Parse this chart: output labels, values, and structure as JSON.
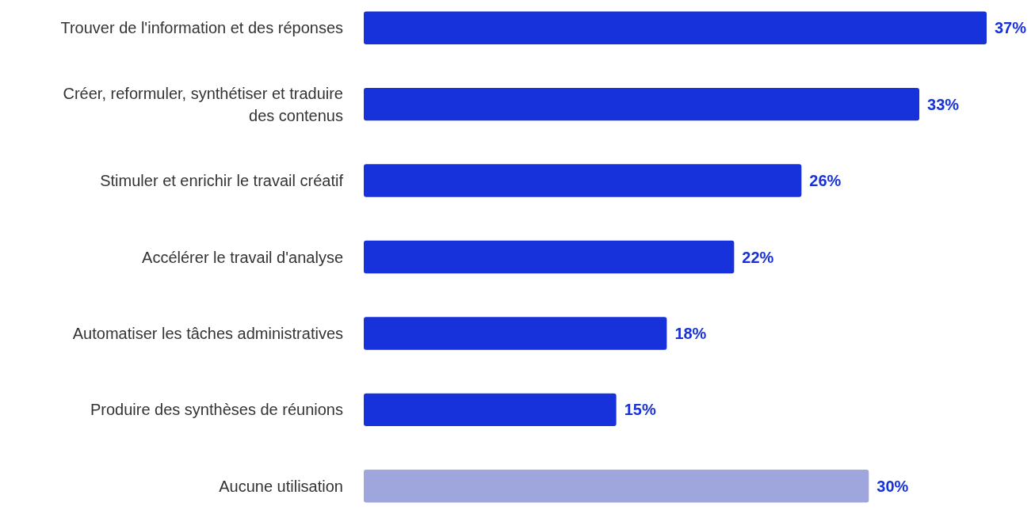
{
  "chart_data": {
    "type": "bar",
    "orientation": "horizontal",
    "categories": [
      "Trouver de l'information et des réponses",
      "Créer, reformuler, synthétiser et traduire des contenus",
      "Stimuler et enrichir le travail créatif",
      "Accélérer le travail d'analyse",
      "Automatiser les tâches administratives",
      "Produire des synthèses de réunions",
      "Aucune utilisation"
    ],
    "series": [
      {
        "color": "#1732db",
        "values": [
          37,
          33,
          26,
          22,
          18,
          15,
          30
        ],
        "colors": [
          "#1732db",
          "#1732db",
          "#1732db",
          "#1732db",
          "#1732db",
          "#1732db",
          "#9ea6dd"
        ],
        "value_labels": [
          "37%",
          "33%",
          "26%",
          "22%",
          "18%",
          "15%",
          "30%"
        ]
      }
    ]
  }
}
